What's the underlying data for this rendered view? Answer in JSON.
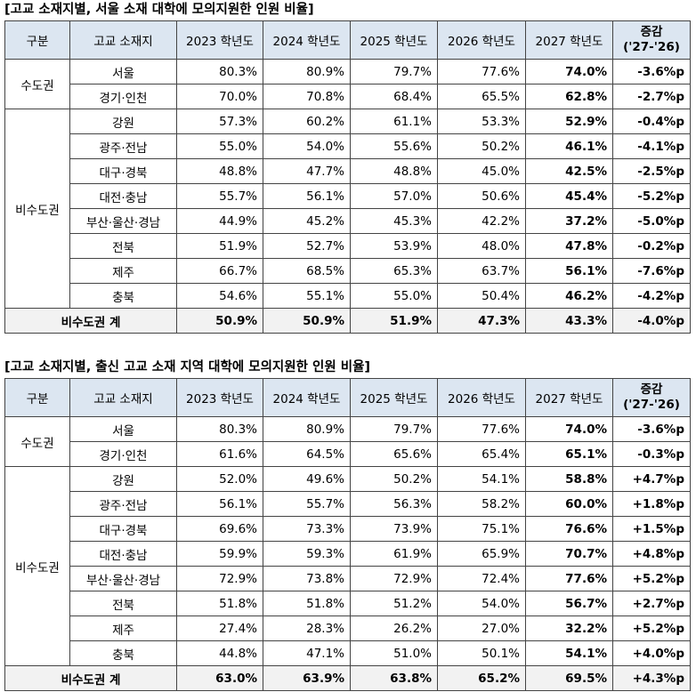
{
  "tables": [
    {
      "title": "[고교 소재지별, 서울 소재 대학에 모의지원한 인원 비율]",
      "header": [
        "구분",
        "고교 소재지",
        "2023 학년도",
        "2024 학년도",
        "2025 학년도",
        "2026 학년도",
        "2027 학년도",
        {
          "text": "증감",
          "sub": "('27-'26)"
        }
      ],
      "groups": [
        {
          "name": "수도권",
          "rows": [
            {
              "region": "서울",
              "values": [
                "80.3%",
                "80.9%",
                "79.7%",
                "77.6%",
                "74.0%",
                "-3.6%p"
              ]
            },
            {
              "region": "경기·인천",
              "values": [
                "70.0%",
                "70.8%",
                "68.4%",
                "65.5%",
                "62.8%",
                "-2.7%p"
              ]
            }
          ]
        },
        {
          "name": "비수도권",
          "rows": [
            {
              "region": "강원",
              "values": [
                "57.3%",
                "60.2%",
                "61.1%",
                "53.3%",
                "52.9%",
                "-0.4%p"
              ]
            },
            {
              "region": "광주·전남",
              "values": [
                "55.0%",
                "54.0%",
                "55.6%",
                "50.2%",
                "46.1%",
                "-4.1%p"
              ]
            },
            {
              "region": "대구·경북",
              "values": [
                "48.8%",
                "47.7%",
                "48.8%",
                "45.0%",
                "42.5%",
                "-2.5%p"
              ]
            },
            {
              "region": "대전·충남",
              "values": [
                "55.7%",
                "56.1%",
                "57.0%",
                "50.6%",
                "45.4%",
                "-5.2%p"
              ]
            },
            {
              "region": "부산·울산·경남",
              "values": [
                "44.9%",
                "45.2%",
                "45.3%",
                "42.2%",
                "37.2%",
                "-5.0%p"
              ]
            },
            {
              "region": "전북",
              "values": [
                "51.9%",
                "52.7%",
                "53.9%",
                "48.0%",
                "47.8%",
                "-0.2%p"
              ]
            },
            {
              "region": "제주",
              "values": [
                "66.7%",
                "68.5%",
                "65.3%",
                "63.7%",
                "56.1%",
                "-7.6%p"
              ]
            },
            {
              "region": "충북",
              "values": [
                "54.6%",
                "55.1%",
                "55.0%",
                "50.4%",
                "46.2%",
                "-4.2%p"
              ]
            }
          ]
        }
      ],
      "total": {
        "label": "비수도권 계",
        "values": [
          "50.9%",
          "50.9%",
          "51.9%",
          "47.3%",
          "43.3%",
          "-4.0%p"
        ]
      }
    },
    {
      "title": "[고교 소재지별, 출신 고교 소재 지역 대학에 모의지원한 인원 비율]",
      "header": [
        "구분",
        "고교 소재지",
        "2023 학년도",
        "2024 학년도",
        "2025 학년도",
        "2026 학년도",
        "2027 학년도",
        {
          "text": "증감",
          "sub": "('27-'26)"
        }
      ],
      "groups": [
        {
          "name": "수도권",
          "rows": [
            {
              "region": "서울",
              "values": [
                "80.3%",
                "80.9%",
                "79.7%",
                "77.6%",
                "74.0%",
                "-3.6%p"
              ]
            },
            {
              "region": "경기·인천",
              "values": [
                "61.6%",
                "64.5%",
                "65.6%",
                "65.4%",
                "65.1%",
                "-0.3%p"
              ]
            }
          ]
        },
        {
          "name": "비수도권",
          "rows": [
            {
              "region": "강원",
              "values": [
                "52.0%",
                "49.6%",
                "50.2%",
                "54.1%",
                "58.8%",
                "+4.7%p"
              ]
            },
            {
              "region": "광주·전남",
              "values": [
                "56.1%",
                "55.7%",
                "56.3%",
                "58.2%",
                "60.0%",
                "+1.8%p"
              ]
            },
            {
              "region": "대구·경북",
              "values": [
                "69.6%",
                "73.3%",
                "73.9%",
                "75.1%",
                "76.6%",
                "+1.5%p"
              ]
            },
            {
              "region": "대전·충남",
              "values": [
                "59.9%",
                "59.3%",
                "61.9%",
                "65.9%",
                "70.7%",
                "+4.8%p"
              ]
            },
            {
              "region": "부산·울산·경남",
              "values": [
                "72.9%",
                "73.8%",
                "72.9%",
                "72.4%",
                "77.6%",
                "+5.2%p"
              ]
            },
            {
              "region": "전북",
              "values": [
                "51.8%",
                "51.8%",
                "51.2%",
                "54.0%",
                "56.7%",
                "+2.7%p"
              ]
            },
            {
              "region": "제주",
              "values": [
                "27.4%",
                "28.3%",
                "26.2%",
                "27.0%",
                "32.2%",
                "+5.2%p"
              ]
            },
            {
              "region": "충북",
              "values": [
                "44.8%",
                "47.1%",
                "51.0%",
                "50.1%",
                "54.1%",
                "+4.0%p"
              ]
            }
          ]
        }
      ],
      "total": {
        "label": "비수도권 계",
        "values": [
          "63.0%",
          "63.9%",
          "63.8%",
          "65.2%",
          "69.5%",
          "+4.3%p"
        ]
      }
    }
  ]
}
